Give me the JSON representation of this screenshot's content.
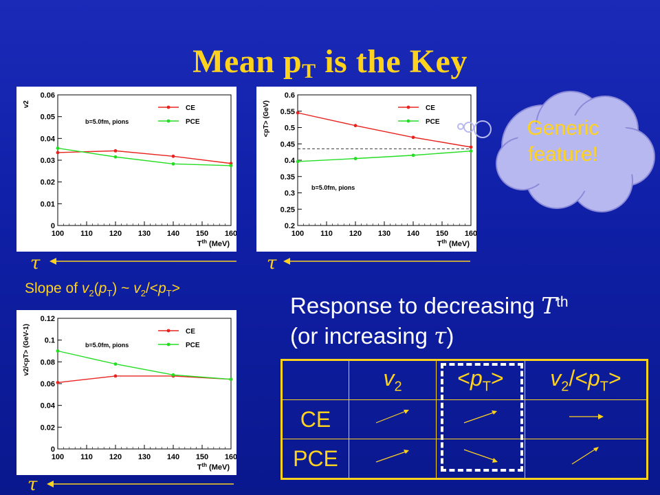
{
  "title": {
    "main": "Mean p",
    "sub": "T",
    "tail": " is the Key"
  },
  "tau_symbol": "τ",
  "slope_text": {
    "prefix": "Slope of ",
    "v": "v",
    "two": "2",
    "open": "(",
    "p": "p",
    "T": "T",
    "close": ") ~ ",
    "v2": "v",
    "two2": "2",
    "slash": "/<",
    "p2": "p",
    "T2": "T",
    "gt": ">"
  },
  "response": {
    "line1": "Response to decreasing ",
    "T": "T",
    "th": "th",
    "line2a": "(or increasing ",
    "tau": "τ",
    "line2b": ")"
  },
  "cloud_text": {
    "line1": "Generic",
    "line2": "feature!"
  },
  "table": {
    "headers": [
      {
        "a": "v",
        "sub": "2",
        "b": ""
      },
      {
        "a": "<p",
        "sub": "T",
        "b": ">"
      },
      {
        "a": "v",
        "sub": "2",
        "b": "/<p",
        "sub2": "T",
        "c": ">"
      }
    ],
    "rows": [
      {
        "label": "CE",
        "arrows": [
          "up",
          "up",
          "flat"
        ]
      },
      {
        "label": "PCE",
        "arrows": [
          "up",
          "down",
          "up"
        ]
      }
    ]
  },
  "colors": {
    "ce": "#e8231f",
    "pce": "#22dd22",
    "accent": "#ffd21e"
  },
  "chart_data": [
    {
      "type": "line",
      "annotation": "b=5.0fm, pions",
      "xlabel": "T^th (MeV)",
      "ylabel": "v_2",
      "xlim": [
        100,
        160
      ],
      "ylim": [
        0,
        0.06
      ],
      "xticks": [
        100,
        110,
        120,
        130,
        140,
        150,
        160
      ],
      "yticks": [
        0,
        0.01,
        0.02,
        0.03,
        0.04,
        0.05,
        0.06
      ],
      "ytick_labels": [
        "0",
        "0.01",
        "0.02",
        "0.03",
        "0.04",
        "0.05",
        "0.06"
      ],
      "legend": "top-right",
      "series": [
        {
          "name": "CE",
          "color": "#e8231f",
          "x": [
            100,
            120,
            140,
            160
          ],
          "y": [
            0.0335,
            0.0343,
            0.0318,
            0.0285
          ]
        },
        {
          "name": "PCE",
          "color": "#22dd22",
          "x": [
            100,
            120,
            140,
            160
          ],
          "y": [
            0.0355,
            0.0315,
            0.0283,
            0.0275
          ]
        }
      ]
    },
    {
      "type": "line",
      "annotation": "b=5.0fm, pions",
      "xlabel": "T^th (MeV)",
      "ylabel": "<p_T> (GeV)",
      "xlim": [
        100,
        160
      ],
      "ylim": [
        0.2,
        0.6
      ],
      "xticks": [
        100,
        110,
        120,
        130,
        140,
        150,
        160
      ],
      "yticks": [
        0.2,
        0.25,
        0.3,
        0.35,
        0.4,
        0.45,
        0.5,
        0.55,
        0.6
      ],
      "ytick_labels": [
        "0.2",
        "0.25",
        "0.3",
        "0.35",
        "0.4",
        "0.45",
        "0.5",
        "0.55",
        "0.6"
      ],
      "hline": 0.435,
      "legend": "top-right",
      "series": [
        {
          "name": "CE",
          "color": "#e8231f",
          "x": [
            100,
            120,
            140,
            160
          ],
          "y": [
            0.545,
            0.506,
            0.47,
            0.44
          ]
        },
        {
          "name": "PCE",
          "color": "#22dd22",
          "x": [
            100,
            120,
            140,
            160
          ],
          "y": [
            0.396,
            0.405,
            0.415,
            0.428
          ]
        }
      ]
    },
    {
      "type": "line",
      "annotation": "b=5.0fm, pions",
      "xlabel": "T^th (MeV)",
      "ylabel": "v_2/<p_T> (GeV^-1)",
      "xlim": [
        100,
        160
      ],
      "ylim": [
        0,
        0.12
      ],
      "xticks": [
        100,
        110,
        120,
        130,
        140,
        150,
        160
      ],
      "yticks": [
        0,
        0.02,
        0.04,
        0.06,
        0.08,
        0.1,
        0.12
      ],
      "ytick_labels": [
        "0",
        "0.02",
        "0.04",
        "0.06",
        "0.08",
        "0.1",
        "0.12"
      ],
      "legend": "top-right",
      "series": [
        {
          "name": "CE",
          "color": "#e8231f",
          "x": [
            100,
            120,
            140,
            160
          ],
          "y": [
            0.061,
            0.067,
            0.067,
            0.064
          ]
        },
        {
          "name": "PCE",
          "color": "#22dd22",
          "x": [
            100,
            120,
            140,
            160
          ],
          "y": [
            0.09,
            0.078,
            0.068,
            0.064
          ]
        }
      ]
    }
  ]
}
